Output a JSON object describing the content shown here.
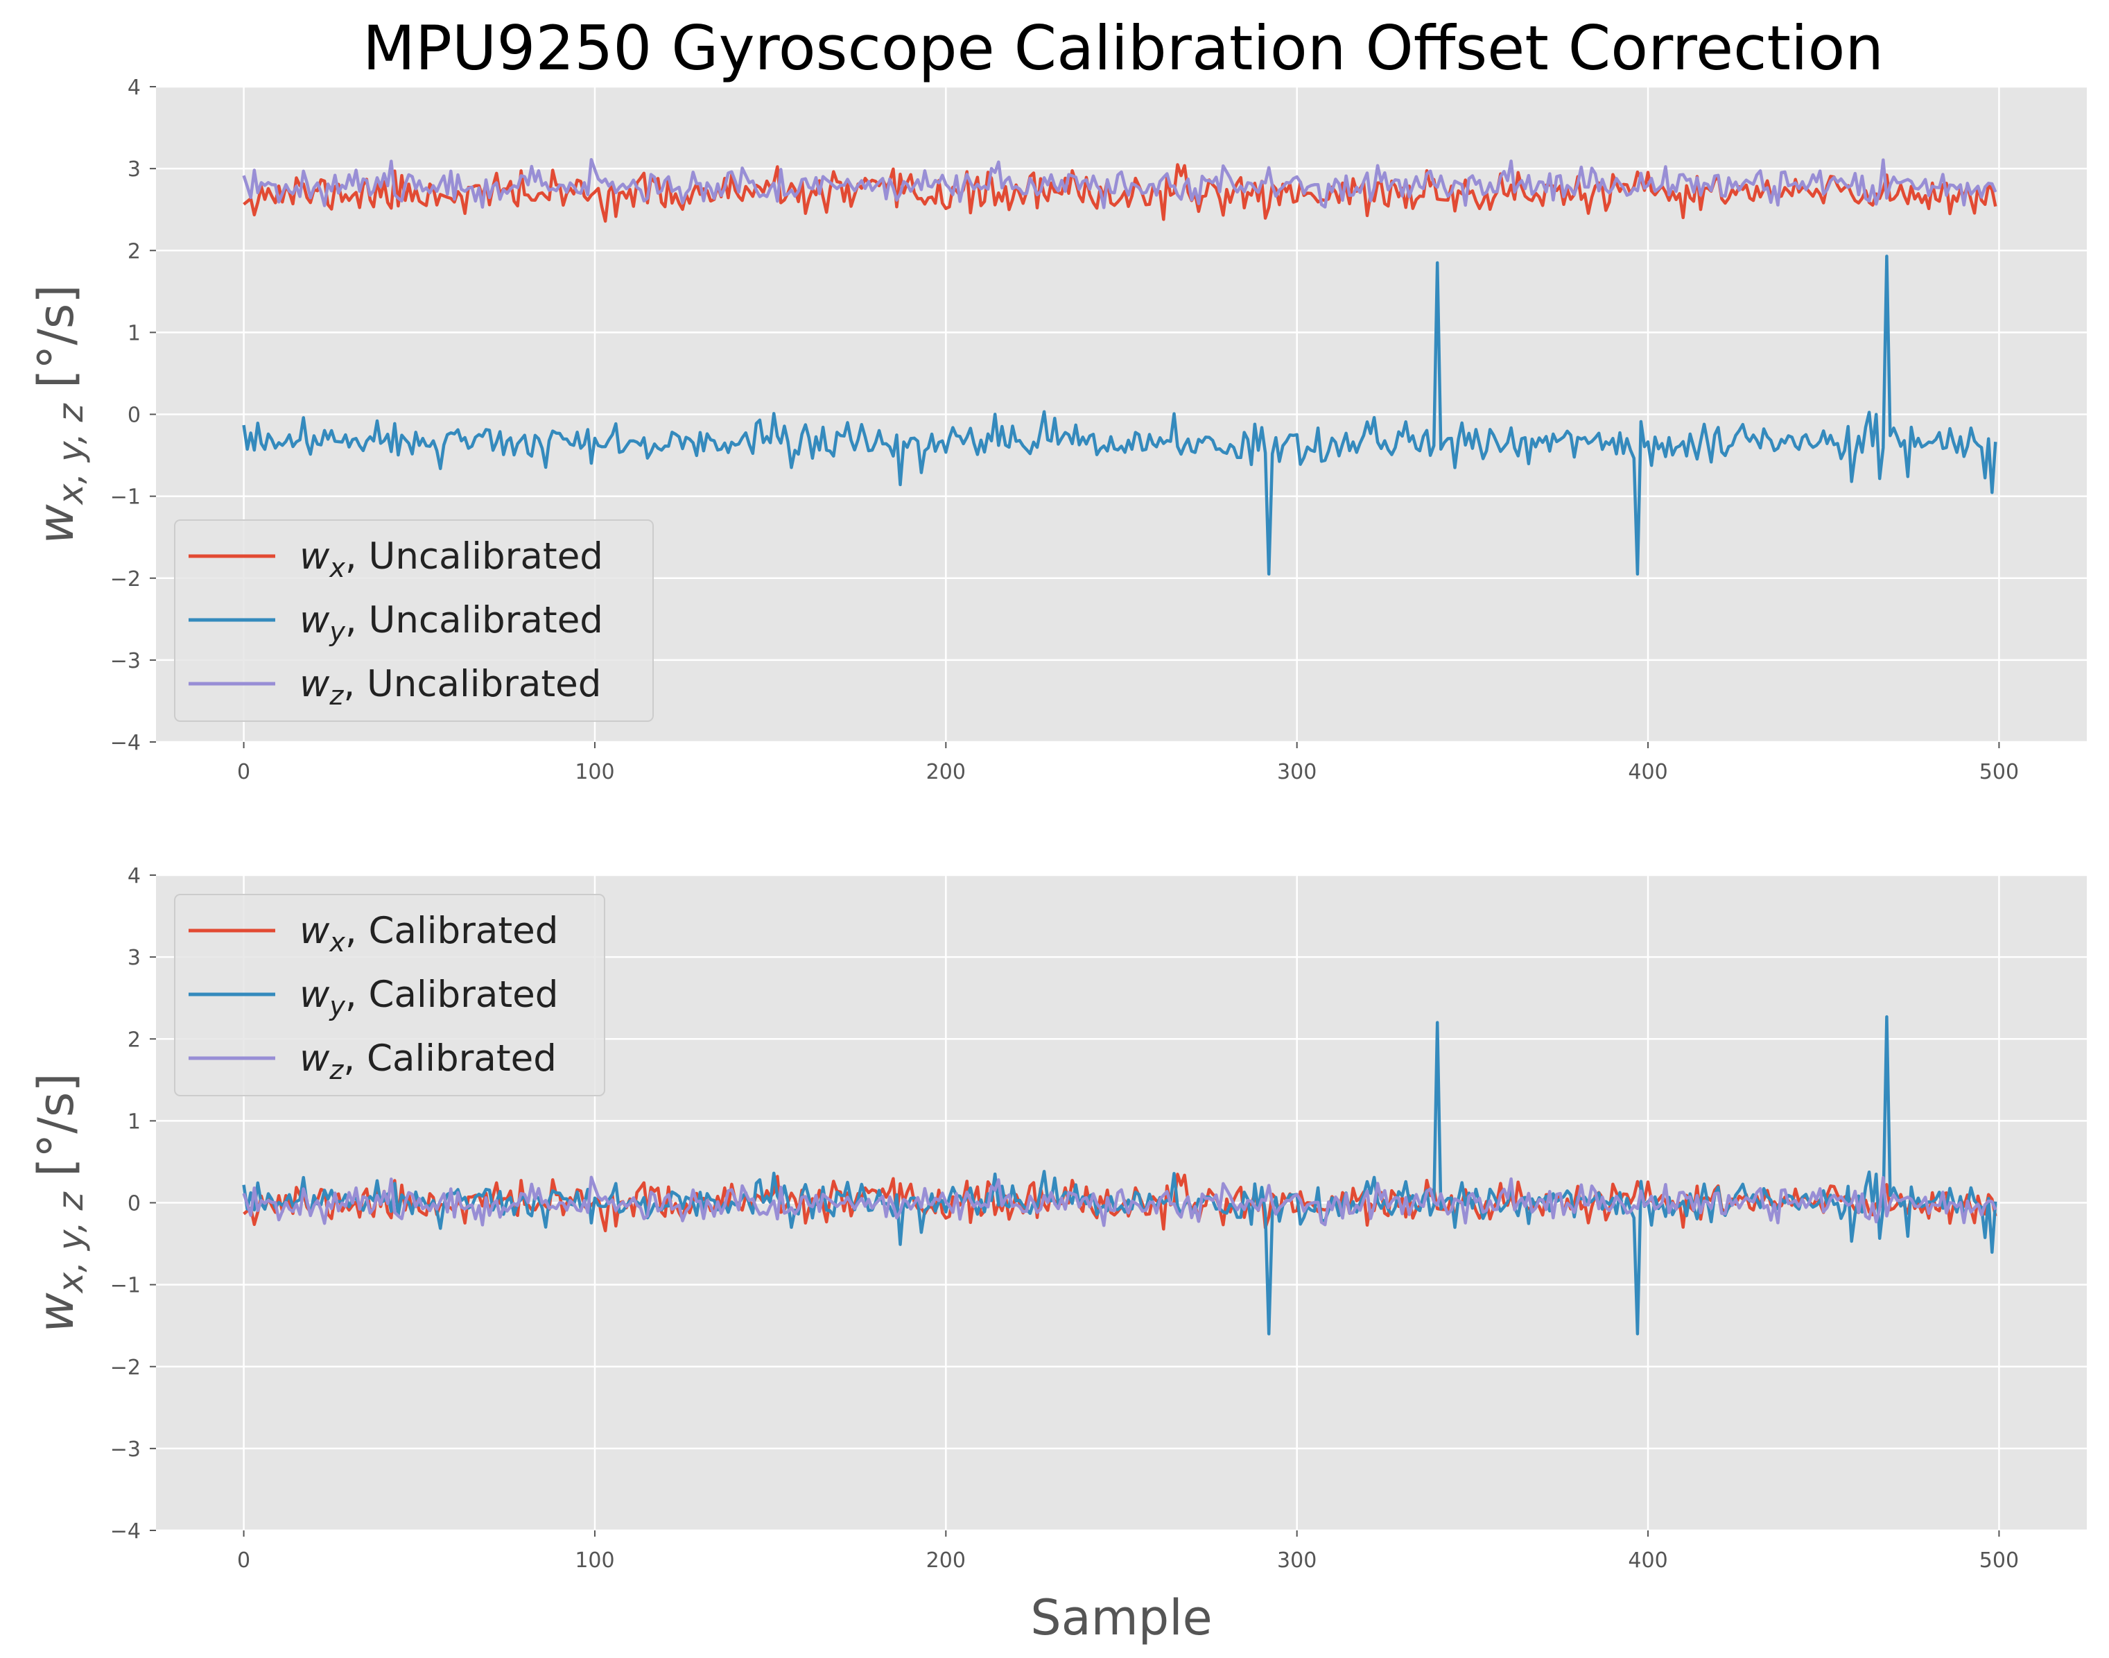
{
  "chart_data": [
    {
      "type": "line",
      "title": "MPU9250 Gyroscope Calibration Offset Correction",
      "xlabel": "",
      "ylabel": "w",
      "ylabel_subscript": "x, y, z",
      "ylabel_unit": " [°/s]",
      "xlim": [
        -25,
        525
      ],
      "ylim": [
        -4,
        4
      ],
      "xticks": [
        0,
        100,
        200,
        300,
        400,
        500
      ],
      "yticks": [
        -4,
        -3,
        -2,
        -1,
        0,
        1,
        2,
        3,
        4
      ],
      "grid": true,
      "legend_position": "lower-left",
      "series": [
        {
          "name": "w",
          "subscript": "x",
          "suffix": ", Uncalibrated",
          "color": "#e24a33",
          "mean": 2.7,
          "noise": 0.12,
          "seed": 11,
          "spikes": []
        },
        {
          "name": "w",
          "subscript": "y",
          "suffix": ", Uncalibrated",
          "color": "#348abd",
          "mean": -0.35,
          "noise": 0.11,
          "seed": 23,
          "spikes": [
            {
              "x": 292,
              "y": -1.95
            },
            {
              "x": 340,
              "y": 1.85
            },
            {
              "x": 397,
              "y": -1.95
            },
            {
              "x": 468,
              "y": 1.93
            }
          ]
        },
        {
          "name": "w",
          "subscript": "z",
          "suffix": ", Uncalibrated",
          "color": "#988ed5",
          "mean": 2.8,
          "noise": 0.1,
          "seed": 37,
          "spikes": []
        }
      ]
    },
    {
      "type": "line",
      "title": "",
      "xlabel": "Sample",
      "ylabel": "w",
      "ylabel_subscript": "x, y, z",
      "ylabel_unit": " [°/s]",
      "xlim": [
        -25,
        525
      ],
      "ylim": [
        -4,
        4
      ],
      "xticks": [
        0,
        100,
        200,
        300,
        400,
        500
      ],
      "yticks": [
        -4,
        -3,
        -2,
        -1,
        0,
        1,
        2,
        3,
        4
      ],
      "grid": true,
      "legend_position": "upper-left",
      "series": [
        {
          "name": "w",
          "subscript": "x",
          "suffix": ", Calibrated",
          "color": "#e24a33",
          "mean": 0.0,
          "noise": 0.12,
          "seed": 11,
          "spikes": []
        },
        {
          "name": "w",
          "subscript": "y",
          "suffix": ", Calibrated",
          "color": "#348abd",
          "mean": 0.0,
          "noise": 0.11,
          "seed": 23,
          "spikes": [
            {
              "x": 292,
              "y": -1.6
            },
            {
              "x": 340,
              "y": 2.2
            },
            {
              "x": 397,
              "y": -1.6
            },
            {
              "x": 468,
              "y": 2.27
            }
          ]
        },
        {
          "name": "w",
          "subscript": "z",
          "suffix": ", Calibrated",
          "color": "#988ed5",
          "mean": 0.0,
          "noise": 0.1,
          "seed": 37,
          "spikes": []
        }
      ]
    }
  ]
}
